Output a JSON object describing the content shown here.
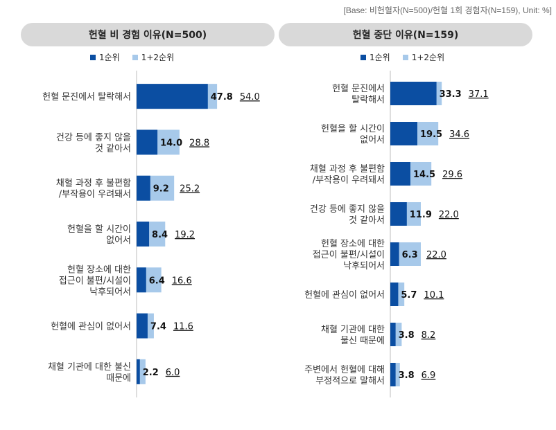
{
  "base_note": "[Base: 비헌혈자(N=500)/헌혈 1회 경험자(N=159), Unit: %]",
  "colors": {
    "rank1": "#0b4ea2",
    "rank12": "#a7c9ea",
    "header_bg": "#d9d9d9"
  },
  "legend": {
    "rank1": "1순위",
    "rank12": "1+2순위"
  },
  "chart_data": [
    {
      "type": "bar",
      "title": "헌혈 비 경험 이유(N=500)",
      "orientation": "horizontal",
      "categories": [
        [
          "헌혈 문진에서 탈락해서"
        ],
        [
          "건강 등에 좋지 않을",
          "것 같아서"
        ],
        [
          "채혈 과정 후 불편함",
          "/부작용이 우려돼서"
        ],
        [
          "헌혈을 할 시간이",
          "없어서"
        ],
        [
          "헌혈 장소에 대한",
          "접근이 불편/시설이",
          "낙후되어서"
        ],
        [
          "헌혈에 관심이 없어서"
        ],
        [
          "채혈 기관에 대한 불신",
          "때문에"
        ]
      ],
      "series": [
        {
          "name": "1순위",
          "values": [
            47.8,
            14.0,
            9.2,
            8.4,
            6.4,
            7.4,
            2.2
          ]
        },
        {
          "name": "1+2순위",
          "values": [
            54.0,
            28.8,
            25.2,
            19.2,
            16.6,
            11.6,
            6.0
          ]
        }
      ],
      "rank1_labels": [
        "47.8",
        "14.0",
        "9.2",
        "8.4",
        "6.4",
        "7.4",
        "2.2"
      ],
      "rank12_labels": [
        "54.0",
        "28.8",
        "25.2",
        "19.2",
        "16.6",
        "11.6",
        "6.0"
      ],
      "legend_position": "top"
    },
    {
      "type": "bar",
      "title": "헌혈 중단 이유(N=159)",
      "orientation": "horizontal",
      "categories": [
        [
          "헌혈 문진에서",
          "탈락해서"
        ],
        [
          "헌혈을 할 시간이",
          "없어서"
        ],
        [
          "채혈 과정 후 불편함",
          "/부작용이 우려돼서"
        ],
        [
          "건강 등에 좋지 않을",
          "것 같아서"
        ],
        [
          "헌혈 장소에 대한",
          "접근이 불편/시설이",
          "낙후되어서"
        ],
        [
          "헌혈에 관심이 없어서"
        ],
        [
          "채혈 기관에 대한",
          "불신 때문에"
        ],
        [
          "주변에서 헌혈에 대해",
          "부정적으로 말해서"
        ]
      ],
      "series": [
        {
          "name": "1순위",
          "values": [
            33.3,
            19.5,
            14.5,
            11.9,
            6.3,
            5.7,
            3.8,
            3.8
          ]
        },
        {
          "name": "1+2순위",
          "values": [
            37.1,
            34.6,
            29.6,
            22.0,
            22.0,
            10.1,
            8.2,
            6.9
          ]
        }
      ],
      "rank1_labels": [
        "33.3",
        "19.5",
        "14.5",
        "11.9",
        "6.3",
        "5.7",
        "3.8",
        "3.8"
      ],
      "rank12_labels": [
        "37.1",
        "34.6",
        "29.6",
        "22.0",
        "22.0",
        "10.1",
        "8.2",
        "6.9"
      ],
      "legend_position": "top"
    }
  ]
}
